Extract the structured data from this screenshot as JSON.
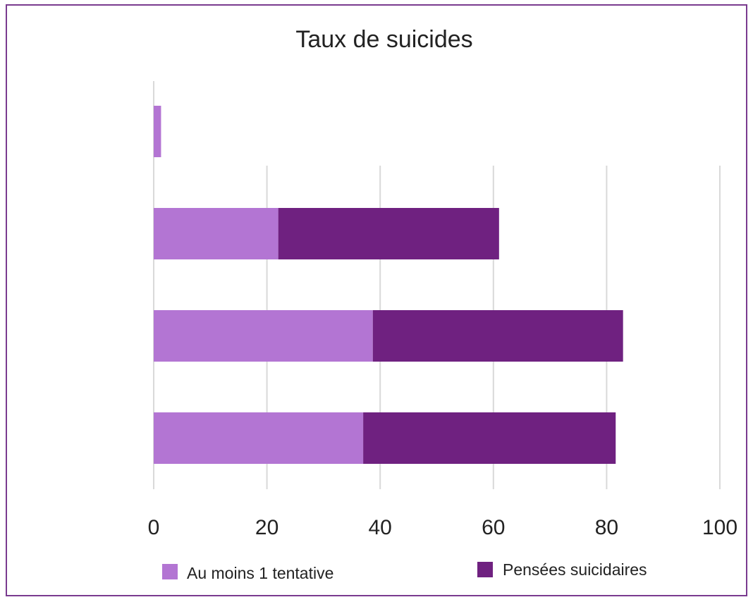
{
  "chart_data": {
    "type": "bar",
    "orientation": "horizontal",
    "stacked": true,
    "title": "Taux de suicides",
    "xlabel": "",
    "ylabel": "",
    "xlim": [
      0,
      100
    ],
    "x_ticks": [
      "0",
      "20",
      "40",
      "60",
      "80",
      "100"
    ],
    "categories": [
      "",
      "",
      "",
      ""
    ],
    "series": [
      {
        "name": "Au moins 1 tentative",
        "color": "#b375d3",
        "values": [
          1.3,
          22,
          38.7,
          37
        ]
      },
      {
        "name": "Pensées suicidaires",
        "color": "#6f2180",
        "values": [
          0,
          39,
          44.2,
          44.6
        ]
      }
    ],
    "grid": true,
    "legend_position": "bottom"
  }
}
